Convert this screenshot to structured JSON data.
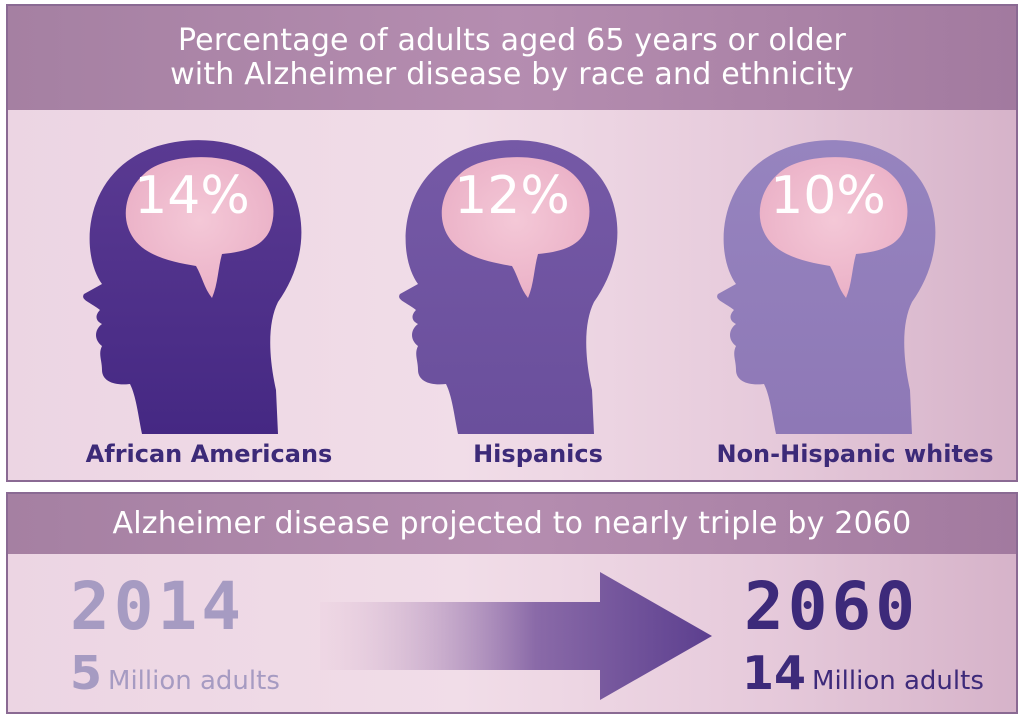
{
  "top_panel": {
    "title_line1": "Percentage of adults aged 65 years or older",
    "title_line2": "with Alzheimer disease by race and ethnicity",
    "groups": [
      {
        "label": "African Americans",
        "percent": "14%"
      },
      {
        "label": "Hispanics",
        "percent": "12%"
      },
      {
        "label": "Non-Hispanic whites",
        "percent": "10%"
      }
    ]
  },
  "bottom_panel": {
    "title": "Alzheimer disease projected to nearly triple by 2060",
    "start": {
      "year": "2014",
      "number": "5",
      "unit": "Million adults"
    },
    "end": {
      "year": "2060",
      "number": "14",
      "unit": "Million adults"
    }
  },
  "colors": {
    "header": "#b08aab",
    "head_dark": "#4a2d85",
    "head_mid": "#6b4f9c",
    "head_light": "#8d76b5",
    "brain": "#eeb9cc",
    "label": "#3c2a78",
    "year_2014": "#a69bc2",
    "year_2060": "#3d2a7a"
  }
}
